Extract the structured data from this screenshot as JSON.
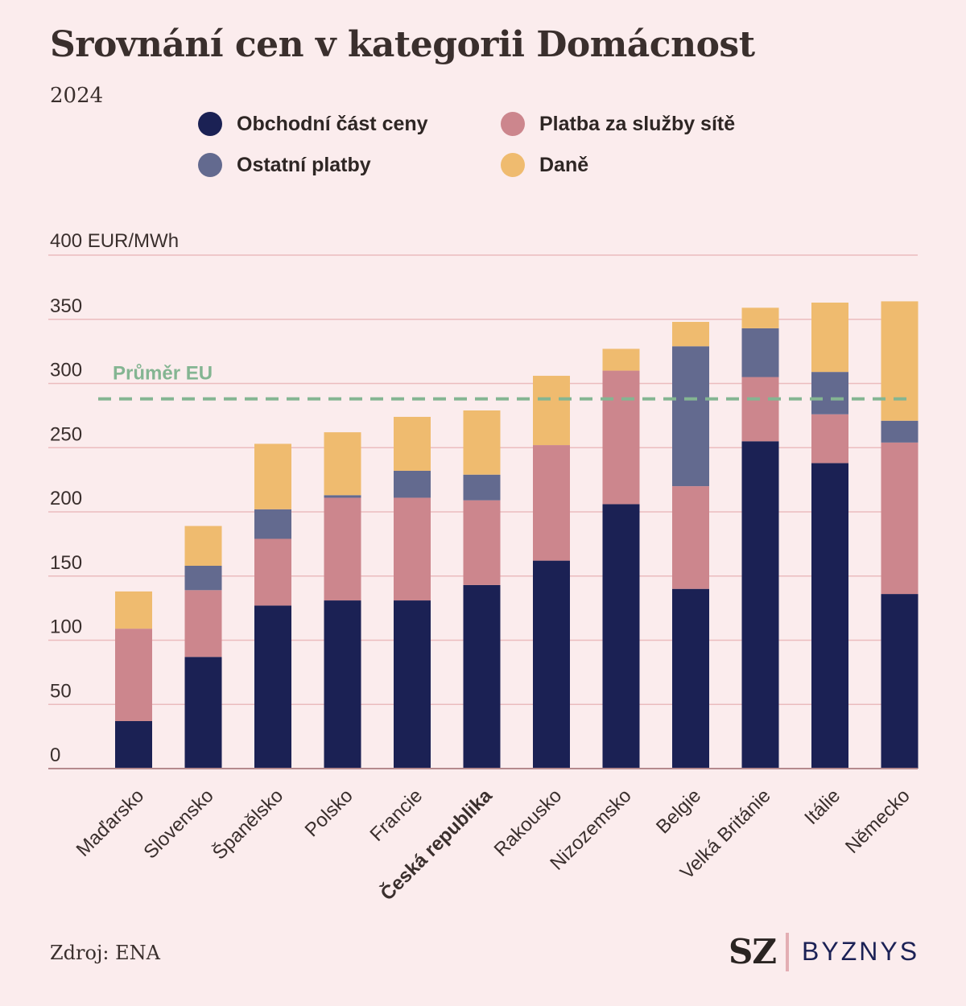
{
  "header": {
    "title": "Srovnání cen v kategorii Domácnost",
    "subtitle": "2024"
  },
  "legend": [
    {
      "label": "Obchodní část ceny",
      "color": "#1b2154"
    },
    {
      "label": "Platba za služby sítě",
      "color": "#cc868d"
    },
    {
      "label": "Ostatní platby",
      "color": "#636a8f"
    },
    {
      "label": "Daně",
      "color": "#efbb6f"
    }
  ],
  "chart_data": {
    "type": "bar",
    "stacked": true,
    "ylabel": "400 EUR/MWh",
    "ylim": [
      0,
      400
    ],
    "yticks": [
      0,
      50,
      100,
      150,
      200,
      250,
      300,
      350
    ],
    "grid": true,
    "categories": [
      "Maďarsko",
      "Slovensko",
      "Španělsko",
      "Polsko",
      "Francie",
      "Česká republika",
      "Rakousko",
      "Nizozemsko",
      "Belgie",
      "Velká Británie",
      "Itálie",
      "Německo"
    ],
    "highlight_category": "Česká republika",
    "series": [
      {
        "name": "Obchodní část ceny",
        "color": "#1b2154",
        "values": [
          37,
          87,
          127,
          131,
          131,
          143,
          162,
          206,
          140,
          255,
          238,
          136
        ]
      },
      {
        "name": "Platba za služby sítě",
        "color": "#cc868d",
        "values": [
          72,
          52,
          52,
          80,
          80,
          66,
          90,
          104,
          80,
          50,
          38,
          118
        ]
      },
      {
        "name": "Ostatní platby",
        "color": "#636a8f",
        "values": [
          0,
          19,
          23,
          2,
          21,
          20,
          0,
          0,
          109,
          38,
          33,
          17
        ]
      },
      {
        "name": "Daně",
        "color": "#efbb6f",
        "values": [
          29,
          31,
          51,
          49,
          42,
          50,
          54,
          17,
          19,
          16,
          54,
          93
        ]
      }
    ],
    "reference_line": {
      "label": "Průměr EU",
      "value": 288,
      "color": "#84b592"
    }
  },
  "footer": {
    "source": "Zdroj: ENA",
    "logo_left": "SZ",
    "logo_right": "BYZNYS"
  }
}
